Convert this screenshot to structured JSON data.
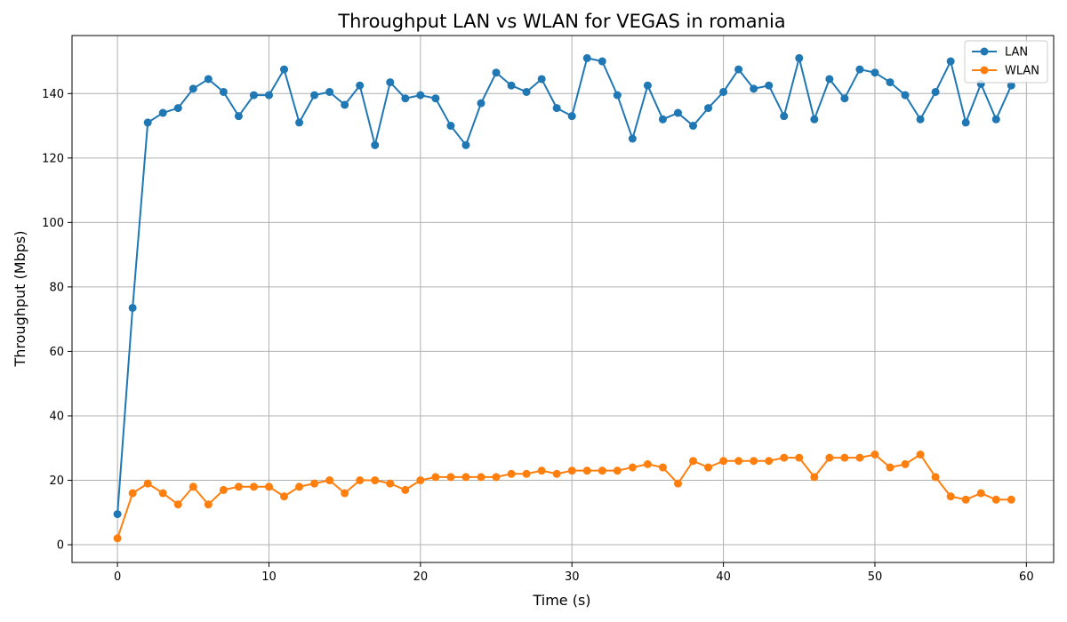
{
  "chart_data": {
    "type": "line",
    "title": "Throughput LAN vs WLAN for VEGAS in romania",
    "xlabel": "Time (s)",
    "ylabel": "Throughput (Mbps)",
    "xlim": [
      -3,
      61.8
    ],
    "ylim": [
      -5.5,
      158
    ],
    "xticks": [
      0,
      10,
      20,
      30,
      40,
      50,
      60
    ],
    "yticks": [
      0,
      20,
      40,
      60,
      80,
      100,
      120,
      140
    ],
    "grid": true,
    "legend_position": "top-right",
    "x": [
      0,
      1,
      2,
      3,
      4,
      5,
      6,
      7,
      8,
      9,
      10,
      11,
      12,
      13,
      14,
      15,
      16,
      17,
      18,
      19,
      20,
      21,
      22,
      23,
      24,
      25,
      26,
      27,
      28,
      29,
      30,
      31,
      32,
      33,
      34,
      35,
      36,
      37,
      38,
      39,
      40,
      41,
      42,
      43,
      44,
      45,
      46,
      47,
      48,
      49,
      50,
      51,
      52,
      53,
      54,
      55,
      56,
      57,
      58,
      59
    ],
    "series": [
      {
        "name": "LAN",
        "color": "#1f77b4",
        "values": [
          9.5,
          73.5,
          131,
          134,
          135.5,
          141.5,
          144.5,
          140.5,
          133,
          139.5,
          139.5,
          147.5,
          131,
          139.5,
          140.5,
          136.5,
          142.5,
          124,
          143.5,
          138.5,
          139.5,
          138.5,
          130,
          124,
          137,
          146.5,
          142.5,
          140.5,
          144.5,
          135.5,
          133,
          151,
          150,
          139.5,
          126,
          142.5,
          132,
          134,
          130,
          135.5,
          140.5,
          147.5,
          141.5,
          142.5,
          133,
          151,
          132,
          144.5,
          138.5,
          147.5,
          146.5,
          143.5,
          139.5,
          132,
          140.5,
          150,
          131,
          143,
          132,
          142.5
        ]
      },
      {
        "name": "WLAN",
        "color": "#ff7f0e",
        "values": [
          2,
          16,
          19,
          16,
          12.5,
          18,
          12.5,
          17,
          18,
          18,
          18,
          15,
          18,
          19,
          20,
          16,
          20,
          20,
          19,
          17,
          20,
          21,
          21,
          21,
          21,
          21,
          22,
          22,
          23,
          22,
          23,
          23,
          23,
          23,
          24,
          25,
          24,
          19,
          26,
          24,
          26,
          26,
          26,
          26,
          27,
          27,
          21,
          27,
          27,
          27,
          28,
          24,
          25,
          28,
          21,
          15,
          14,
          16,
          14,
          14
        ]
      }
    ]
  }
}
